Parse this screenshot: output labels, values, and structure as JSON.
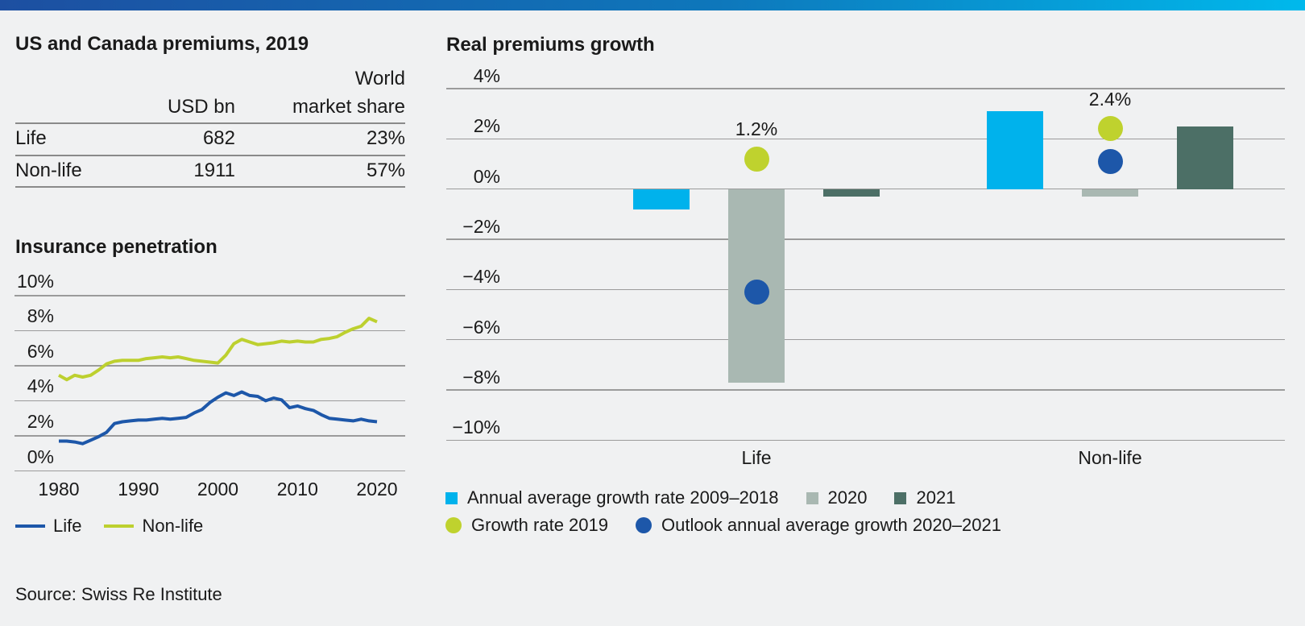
{
  "meta": {
    "source_note": "Source: Swiss Re Institute"
  },
  "palette": {
    "background": "#f0f1f2",
    "text": "#1a1a1a",
    "grid_line": "#9b9b9b",
    "table_line": "#8a8a8a",
    "top_bar_gradient_left": "#1d4fa1",
    "top_bar_gradient_mid": "#0e77bb",
    "top_bar_gradient_right": "#00b9ec",
    "cyan": "#00b2ec",
    "gray": "#a9b8b2",
    "dark_green": "#4c6f66",
    "lime": "#bfd22e",
    "blue": "#1d57a9",
    "life_line": "#1d57a9",
    "nonlife_line": "#bdd02f"
  },
  "premiums_table": {
    "title": "US and Canada premiums, 2019",
    "headers": {
      "col2": "USD bn",
      "col3_line1": "World",
      "col3_line2": "market share"
    },
    "rows": [
      {
        "label": "Life",
        "usd_bn": "682",
        "world_market_share": "23%"
      },
      {
        "label": "Non-life",
        "usd_bn": "1911",
        "world_market_share": "57%"
      }
    ]
  },
  "chart_data": [
    {
      "id": "us_canada_premiums_2019",
      "type": "table",
      "title": "US and Canada premiums, 2019",
      "columns": [
        "",
        "USD bn",
        "World market share"
      ],
      "rows": [
        [
          "Life",
          "682",
          "23%"
        ],
        [
          "Non-life",
          "1911",
          "57%"
        ]
      ]
    },
    {
      "id": "insurance_penetration",
      "type": "line",
      "title": "Insurance penetration",
      "unit": "%",
      "ylim": [
        0,
        10
      ],
      "grid": true,
      "legend_position": "bottom",
      "x_years": [
        1980,
        1981,
        1982,
        1983,
        1984,
        1985,
        1986,
        1987,
        1988,
        1989,
        1990,
        1991,
        1992,
        1993,
        1994,
        1995,
        1996,
        1997,
        1998,
        1999,
        2000,
        2001,
        2002,
        2003,
        2004,
        2005,
        2006,
        2007,
        2008,
        2009,
        2010,
        2011,
        2012,
        2013,
        2014,
        2015,
        2016,
        2017,
        2018,
        2019,
        2020
      ],
      "series": [
        {
          "name": "Life",
          "color_key": "life_line",
          "values": [
            1.7,
            1.7,
            1.65,
            1.55,
            1.75,
            1.95,
            2.2,
            2.7,
            2.8,
            2.85,
            2.9,
            2.9,
            2.95,
            3.0,
            2.95,
            3.0,
            3.05,
            3.3,
            3.5,
            3.9,
            4.2,
            4.45,
            4.3,
            4.5,
            4.3,
            4.25,
            4.0,
            4.15,
            4.05,
            3.6,
            3.7,
            3.55,
            3.45,
            3.2,
            3.0,
            2.95,
            2.9,
            2.85,
            2.95,
            2.85,
            2.8
          ]
        },
        {
          "name": "Non-life",
          "color_key": "nonlife_line",
          "values": [
            5.45,
            5.2,
            5.45,
            5.35,
            5.45,
            5.75,
            6.1,
            6.25,
            6.3,
            6.3,
            6.3,
            6.4,
            6.45,
            6.5,
            6.45,
            6.5,
            6.4,
            6.3,
            6.25,
            6.2,
            6.15,
            6.6,
            7.25,
            7.5,
            7.35,
            7.2,
            7.25,
            7.3,
            7.4,
            7.35,
            7.4,
            7.35,
            7.35,
            7.5,
            7.55,
            7.65,
            7.9,
            8.1,
            8.25,
            8.7,
            8.5
          ]
        }
      ],
      "y_ticks": [
        {
          "label": "10%",
          "value": 10
        },
        {
          "label": "8%",
          "value": 8
        },
        {
          "label": "6%",
          "value": 6
        },
        {
          "label": "4%",
          "value": 4
        },
        {
          "label": "2%",
          "value": 2
        },
        {
          "label": "0%",
          "value": 0
        }
      ],
      "x_ticks": [
        {
          "label": "1980",
          "value": 1980
        },
        {
          "label": "1990",
          "value": 1990
        },
        {
          "label": "2000",
          "value": 2000
        },
        {
          "label": "2010",
          "value": 2010
        },
        {
          "label": "2020",
          "value": 2020
        }
      ],
      "legend": [
        {
          "label": "Life",
          "color_key": "life_line"
        },
        {
          "label": "Non-life",
          "color_key": "nonlife_line"
        }
      ]
    },
    {
      "id": "real_premiums_growth",
      "type": "bar+scatter",
      "title": "Real premiums growth",
      "unit": "%",
      "ylim": [
        -10,
        4
      ],
      "grid": true,
      "categories": [
        "Life",
        "Non-life"
      ],
      "bar_series": [
        {
          "name": "Annual average growth rate 2009–2018",
          "color_key": "cyan",
          "values": [
            -0.8,
            3.1
          ]
        },
        {
          "name": "2020",
          "color_key": "gray",
          "values": [
            -7.7,
            -0.3
          ]
        },
        {
          "name": "2021",
          "color_key": "dark_green",
          "values": [
            -0.3,
            2.5
          ]
        }
      ],
      "dot_series": [
        {
          "name": "Growth rate 2019",
          "color_key": "lime",
          "values": [
            1.2,
            2.4
          ],
          "point_labels": [
            "1.2%",
            "2.4%"
          ]
        },
        {
          "name": "Outlook annual average growth 2020–2021",
          "color_key": "blue",
          "values": [
            -4.1,
            1.1
          ],
          "point_labels": [
            null,
            null
          ]
        }
      ],
      "y_ticks": [
        {
          "label": "4%",
          "value": 4
        },
        {
          "label": "2%",
          "value": 2
        },
        {
          "label": "0%",
          "value": 0
        },
        {
          "label": "−2%",
          "value": -2
        },
        {
          "label": "−4%",
          "value": -4
        },
        {
          "label": "−6%",
          "value": -6
        },
        {
          "label": "−8%",
          "value": -8
        },
        {
          "label": "−10%",
          "value": -10
        }
      ]
    }
  ]
}
